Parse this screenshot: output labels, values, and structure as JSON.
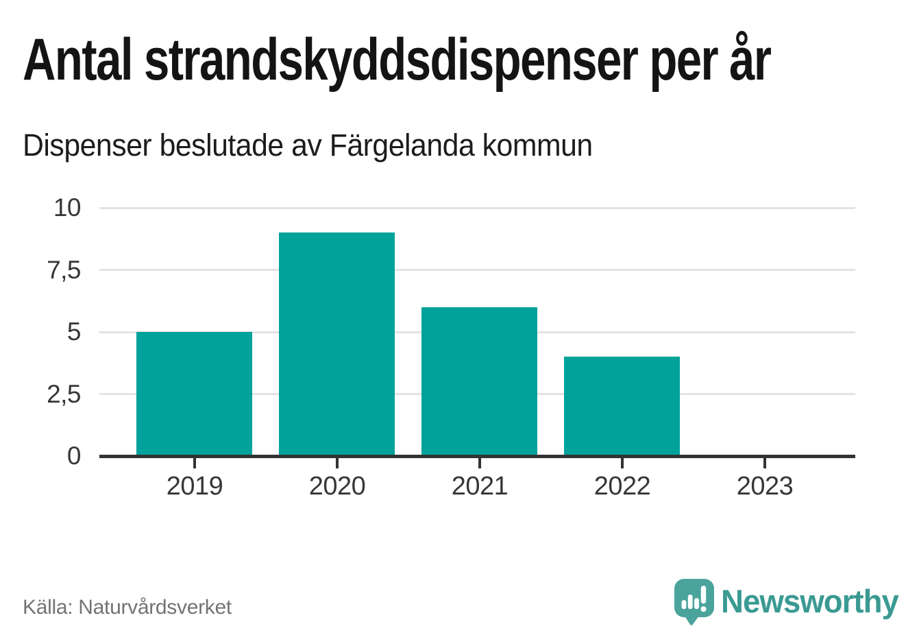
{
  "header": {
    "title": "Antal strandskyddsdispenser per år",
    "subtitle": "Dispenser beslutade av Färgelanda kommun"
  },
  "chart_data": {
    "type": "bar",
    "title": "Antal strandskyddsdispenser per år",
    "subtitle": "Dispenser beslutade av Färgelanda kommun",
    "categories": [
      "2019",
      "2020",
      "2021",
      "2022",
      "2023"
    ],
    "values": [
      5,
      9,
      6,
      4,
      0
    ],
    "xlabel": "",
    "ylabel": "",
    "ylim": [
      0,
      10
    ],
    "yticks": [
      {
        "label": "0",
        "value": 0
      },
      {
        "label": "2,5",
        "value": 2.5
      },
      {
        "label": "5",
        "value": 5
      },
      {
        "label": "7,5",
        "value": 7.5
      },
      {
        "label": "10",
        "value": 10
      }
    ],
    "grid": "horizontal",
    "legend": "none",
    "bar_color": "#00a29a"
  },
  "footer": {
    "source": "Källa: Naturvårdsverket",
    "logo_text": "Newsworthy"
  },
  "colors": {
    "bar": "#00a29a",
    "axis": "#333333",
    "gridline": "#e3e3e3",
    "tick_label": "#363636",
    "title": "#141414",
    "source_text": "#737373",
    "logo_teal": "#3a9a92",
    "logo_icon": "#4ba49c"
  }
}
